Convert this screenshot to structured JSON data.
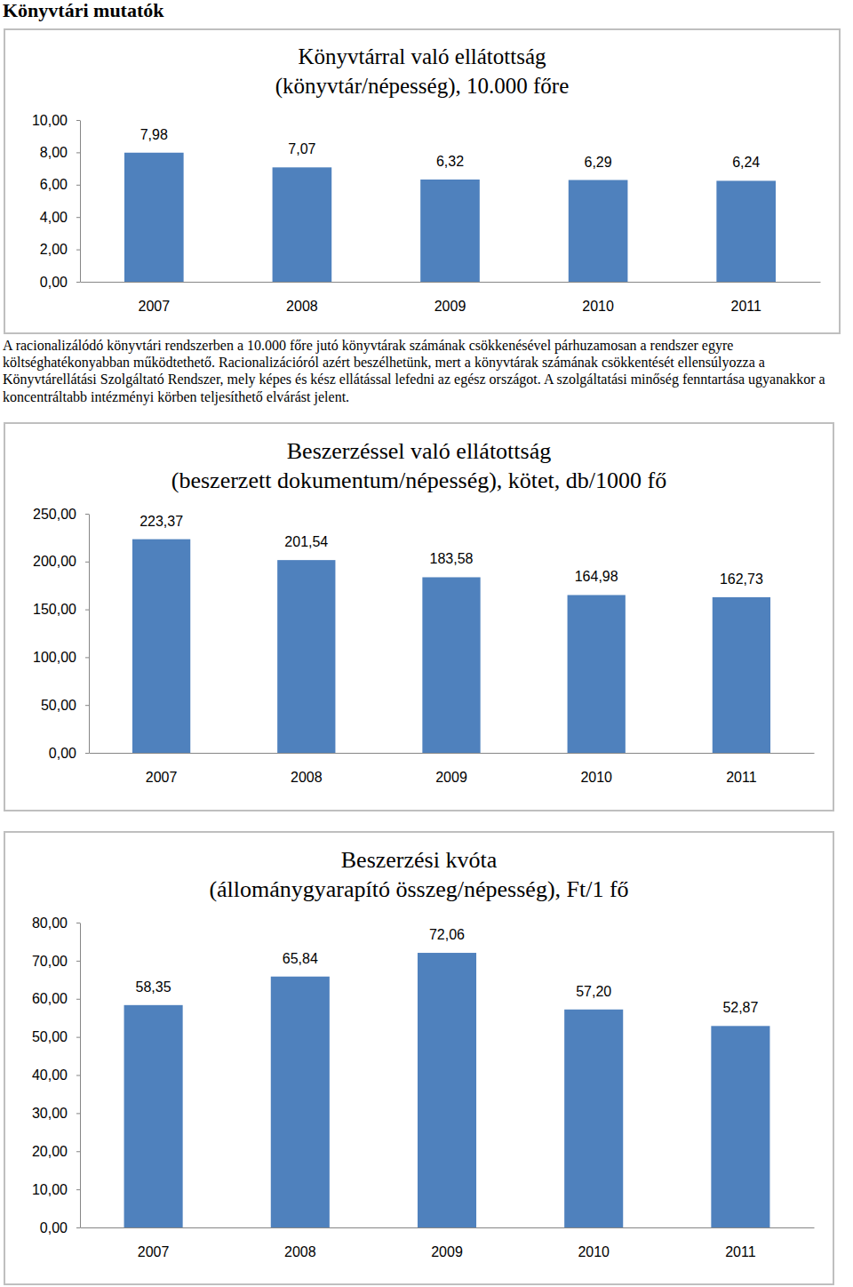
{
  "heading": "Könyvtári mutatók",
  "paragraph": "A racionalizálódó könyvtári rendszerben a 10.000 főre jutó könyvtárak számának csökkenésével párhuzamosan a rendszer egyre költséghatékonyabban működtethető. Racionalizációról azért beszélhetünk, mert a könyvtárak számának csökkentését ellensúlyozza a Könyvtárellátási Szolgáltató Rendszer, mely képes és kész ellátással lefedni az egész országot. A szolgáltatási minőség fenntartása ugyanakkor a koncentráltabb intézményi körben teljesíthető elvárást jelent.",
  "chart_data": [
    {
      "type": "bar",
      "title": "Könyvtárral való ellátottság",
      "subtitle": "(könyvtár/népesség), 10.000 főre",
      "categories": [
        "2007",
        "2008",
        "2009",
        "2010",
        "2011"
      ],
      "values": [
        7.98,
        7.07,
        6.32,
        6.29,
        6.24
      ],
      "value_labels": [
        "7,98",
        "7,07",
        "6,32",
        "6,29",
        "6,24"
      ],
      "color": "#4f81bd",
      "ylim": [
        0,
        10
      ],
      "yticks": [
        {
          "value": 0,
          "label": "0,00"
        },
        {
          "value": 2,
          "label": "2,00"
        },
        {
          "value": 4,
          "label": "4,00"
        },
        {
          "value": 6,
          "label": "6,00"
        },
        {
          "value": 8,
          "label": "8,00"
        },
        {
          "value": 10,
          "label": "10,00"
        }
      ],
      "grid": false,
      "data_labels": true
    },
    {
      "type": "bar",
      "title": "Beszerzéssel való ellátottság",
      "subtitle": "(beszerzett dokumentum/népesség), kötet, db/1000 fő",
      "categories": [
        "2007",
        "2008",
        "2009",
        "2010",
        "2011"
      ],
      "values": [
        223.37,
        201.54,
        183.58,
        164.98,
        162.73
      ],
      "value_labels": [
        "223,37",
        "201,54",
        "183,58",
        "164,98",
        "162,73"
      ],
      "color": "#4f81bd",
      "ylim": [
        0,
        250
      ],
      "yticks": [
        {
          "value": 0,
          "label": "0,00"
        },
        {
          "value": 50,
          "label": "50,00"
        },
        {
          "value": 100,
          "label": "100,00"
        },
        {
          "value": 150,
          "label": "150,00"
        },
        {
          "value": 200,
          "label": "200,00"
        },
        {
          "value": 250,
          "label": "250,00"
        }
      ],
      "grid": false,
      "data_labels": true
    },
    {
      "type": "bar",
      "title": "Beszerzési kvóta",
      "subtitle": "(állománygyarapító összeg/népesség), Ft/1 fő",
      "categories": [
        "2007",
        "2008",
        "2009",
        "2010",
        "2011"
      ],
      "values": [
        58.35,
        65.84,
        72.06,
        57.2,
        52.87
      ],
      "value_labels": [
        "58,35",
        "65,84",
        "72,06",
        "57,20",
        "52,87"
      ],
      "color": "#4f81bd",
      "ylim": [
        0,
        80
      ],
      "yticks": [
        {
          "value": 0,
          "label": "0,00"
        },
        {
          "value": 10,
          "label": "10,00"
        },
        {
          "value": 20,
          "label": "20,00"
        },
        {
          "value": 30,
          "label": "30,00"
        },
        {
          "value": 40,
          "label": "40,00"
        },
        {
          "value": 50,
          "label": "50,00"
        },
        {
          "value": 60,
          "label": "60,00"
        },
        {
          "value": 70,
          "label": "70,00"
        },
        {
          "value": 80,
          "label": "80,00"
        }
      ],
      "grid": false,
      "data_labels": true
    }
  ]
}
